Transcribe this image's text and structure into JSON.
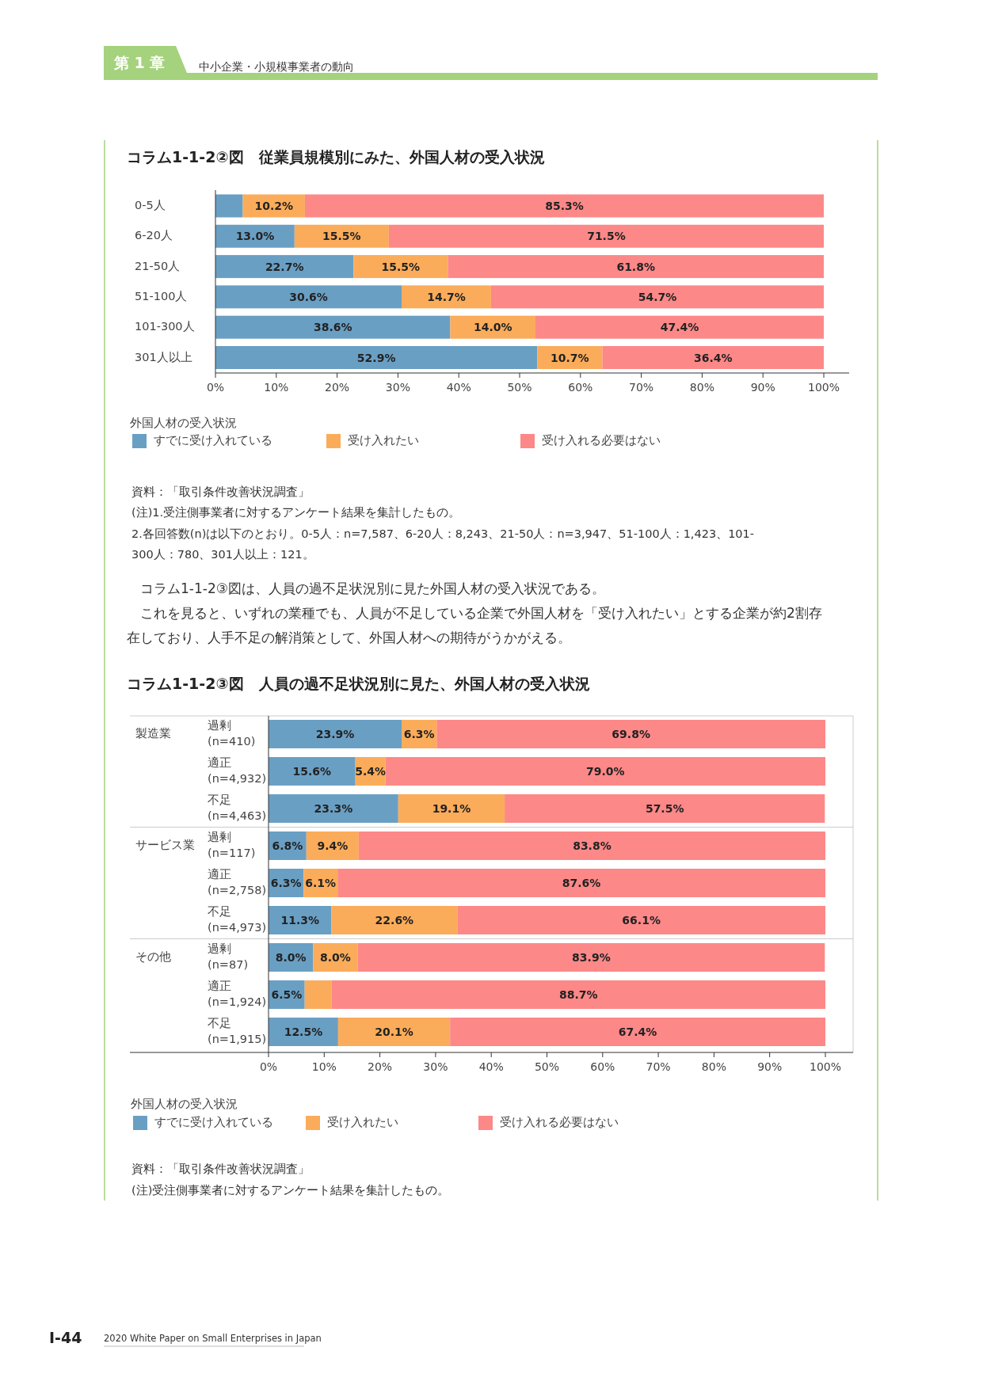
{
  "chart_data": [
    {
      "type": "bar",
      "orientation": "horizontal",
      "stacked": true,
      "title": "コラム1-1-2②図　従業員規模別にみた、外国人材の受入状況",
      "categories": [
        "0-5人",
        "6-20人",
        "21-50人",
        "51-100人",
        "101-300人",
        "301人以上"
      ],
      "series": [
        {
          "name": "すでに受け入れている",
          "color": "#6a9fc4",
          "values": [
            4.5,
            13.0,
            22.7,
            30.6,
            38.6,
            52.9
          ],
          "value_labels": [
            null,
            "13.0%",
            "22.7%",
            "30.6%",
            "38.6%",
            "52.9%"
          ]
        },
        {
          "name": "受け入れたい",
          "color": "#fbac5a",
          "values": [
            10.2,
            15.5,
            15.5,
            14.7,
            14.0,
            10.7
          ],
          "value_labels": [
            "10.2%",
            "15.5%",
            "15.5%",
            "14.7%",
            "14.0%",
            "10.7%"
          ]
        },
        {
          "name": "受け入れる必要はない",
          "color": "#fd8888",
          "values": [
            85.3,
            71.5,
            61.8,
            54.7,
            47.4,
            36.4
          ],
          "value_labels": [
            "85.3%",
            "71.5%",
            "61.8%",
            "54.7%",
            "47.4%",
            "36.4%"
          ]
        }
      ],
      "xlim": [
        0,
        100
      ],
      "xticks": [
        {
          "value": 0,
          "label": "0%"
        },
        {
          "value": 10,
          "label": "10%"
        },
        {
          "value": 20,
          "label": "20%"
        },
        {
          "value": 30,
          "label": "30%"
        },
        {
          "value": 40,
          "label": "40%"
        },
        {
          "value": 50,
          "label": "50%"
        },
        {
          "value": 60,
          "label": "60%"
        },
        {
          "value": 70,
          "label": "70%"
        },
        {
          "value": 80,
          "label": "80%"
        },
        {
          "value": 90,
          "label": "90%"
        },
        {
          "value": 100,
          "label": "100%"
        }
      ],
      "legend": "bottom",
      "legend_title": "外国人材の受入状況",
      "annotations": [
        "第 1 章",
        "中小企業・小規模事業者の動向",
        "資料：「取引条件改善状況調査」",
        "(注)1.受注側事業者に対するアンケート結果を集計したもの。",
        "2.各回答数(n)は以下のとおり。0-5人：n=7,587、6-20人：8,243、21-50人：n=3,947、51-100人：1,423、101-\n300人：780、301人以上：121。",
        "　コラム1-1-2③図は、人員の過不足状況別に見た外国人材の受入状況である。",
        "　これを見ると、いずれの業種でも、人員が不足している企業で外国人材を「受け入れたい」とする企業が約2割存",
        "在しており、人手不足の解消策として、外国人材への期待がうかがえる。",
        "I-44",
        "2020 White Paper on Small Enterprises in Japan"
      ]
    },
    {
      "type": "bar",
      "orientation": "horizontal",
      "stacked": true,
      "title": "コラム1-1-2③図　人員の過不足状況別に見た、外国人材の受入状況",
      "categories": [
        "過剰\n(n=410)",
        "適正\n(n=4,932)",
        "不足\n(n=4,463)",
        "過剰\n(n=117)",
        "適正\n(n=2,758)",
        "不足\n(n=4,973)",
        "過剰\n(n=87)",
        "適正\n(n=1,924)",
        "不足\n(n=1,915)"
      ],
      "series": [
        {
          "name": "すでに受け入れている",
          "color": "#6a9fc4",
          "values": [
            23.9,
            15.6,
            23.3,
            6.8,
            6.3,
            11.3,
            8.0,
            6.5,
            12.5
          ],
          "value_labels": [
            "23.9%",
            "15.6%",
            "23.3%",
            "6.8%",
            "6.3%",
            "11.3%",
            "8.0%",
            "6.5%",
            "12.5%"
          ]
        },
        {
          "name": "受け入れたい",
          "color": "#fbac5a",
          "values": [
            6.3,
            5.4,
            19.1,
            9.4,
            6.1,
            22.6,
            8.0,
            4.8,
            20.1
          ],
          "value_labels": [
            "6.3%",
            "5.4%",
            "19.1%",
            "9.4%",
            "6.1%",
            "22.6%",
            "8.0%",
            null,
            "20.1%"
          ]
        },
        {
          "name": "受け入れる必要はない",
          "color": "#fd8888",
          "values": [
            69.8,
            79.0,
            57.5,
            83.8,
            87.6,
            66.1,
            83.9,
            88.7,
            67.4
          ],
          "value_labels": [
            "69.8%",
            "79.0%",
            "57.5%",
            "83.8%",
            "87.6%",
            "66.1%",
            "83.9%",
            "88.7%",
            "67.4%"
          ]
        }
      ],
      "xlim": [
        0,
        100
      ],
      "xticks": [
        {
          "value": 0,
          "label": "0%"
        },
        {
          "value": 10,
          "label": "10%"
        },
        {
          "value": 20,
          "label": "20%"
        },
        {
          "value": 30,
          "label": "30%"
        },
        {
          "value": 40,
          "label": "40%"
        },
        {
          "value": 50,
          "label": "50%"
        },
        {
          "value": 60,
          "label": "60%"
        },
        {
          "value": 70,
          "label": "70%"
        },
        {
          "value": 80,
          "label": "80%"
        },
        {
          "value": 90,
          "label": "90%"
        },
        {
          "value": 100,
          "label": "100%"
        }
      ],
      "legend": "bottom",
      "legend_title": "外国人材の受入状況",
      "annotations": [
        "製造業",
        "サービス業",
        "その他",
        "資料：「取引条件改善状況調査」",
        "(注)受注側事業者に対するアンケート結果を集計したもの。"
      ]
    }
  ]
}
